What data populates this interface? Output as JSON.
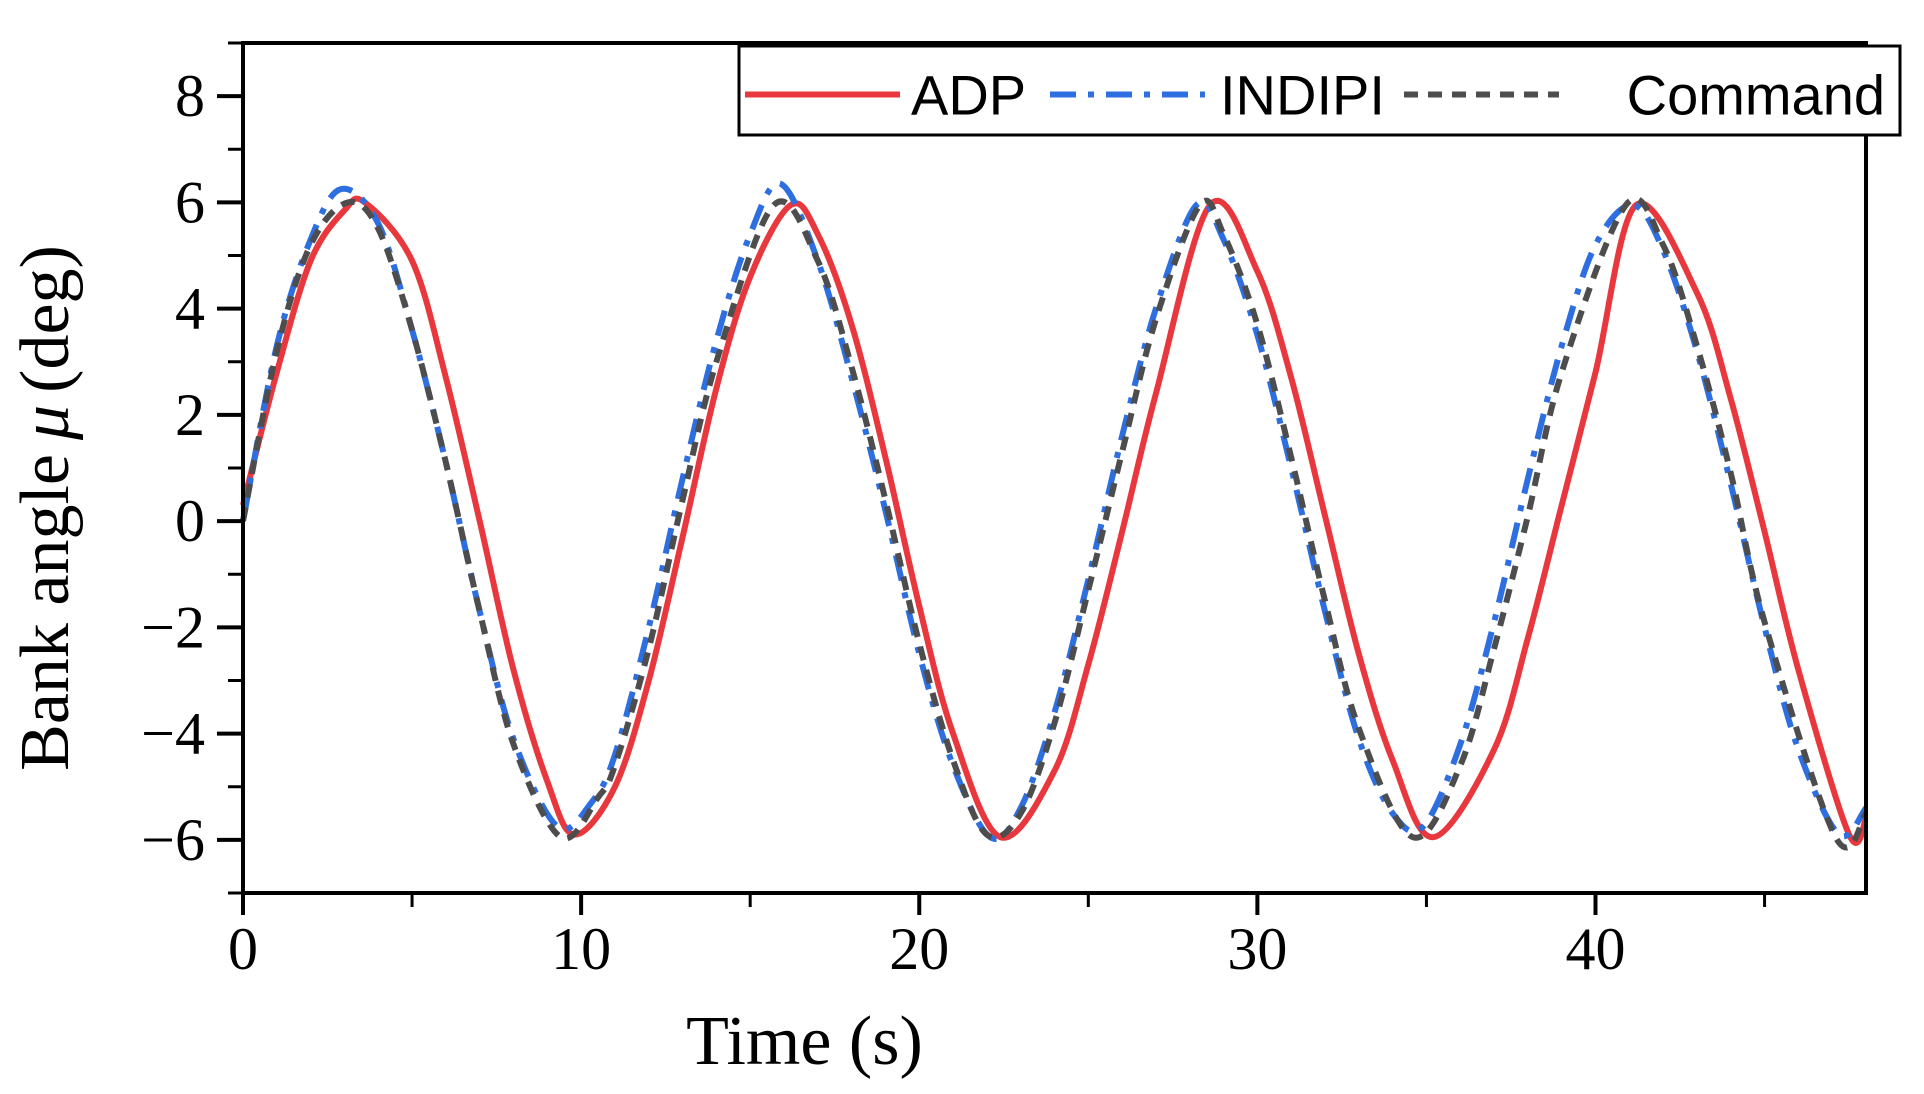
{
  "chart_data": {
    "type": "line",
    "title": "",
    "xlabel": "Time (s)",
    "ylabel": "Bank angle",
    "ylabel_symbol": "μ",
    "ylabel_unit": "(deg)",
    "xlim": [
      0,
      48
    ],
    "ylim": [
      -7,
      9
    ],
    "x_ticks": [
      0,
      10,
      20,
      30,
      40
    ],
    "x_tick_labels": [
      "0",
      "10",
      "20",
      "30",
      "40"
    ],
    "x_minor_ticks": [
      5,
      15,
      25,
      35,
      45
    ],
    "y_ticks": [
      -6,
      -4,
      -2,
      0,
      2,
      4,
      6,
      8
    ],
    "y_tick_labels": [
      "−6",
      "−4",
      "−2",
      "0",
      "2",
      "4",
      "6",
      "8"
    ],
    "y_minor_ticks": [
      -7,
      -5,
      -3,
      -1,
      1,
      3,
      5,
      7,
      9
    ],
    "grid": false,
    "legend": {
      "position": "top-right",
      "orientation": "horizontal"
    },
    "series": [
      {
        "name": "ADP",
        "color": "#e8373d",
        "style": "solid",
        "x": [
          0,
          1,
          2,
          3,
          3.6,
          5,
          6,
          7,
          8,
          9,
          9.8,
          11,
          12,
          13,
          14,
          15,
          16.2,
          17,
          18,
          19,
          20,
          21,
          22.4,
          24,
          25,
          26,
          27,
          28.6,
          30,
          31,
          32,
          33,
          34,
          35.2,
          37,
          38,
          39,
          40,
          41.2,
          43,
          44,
          45,
          46,
          47.5,
          48
        ],
        "values": [
          0.3,
          2.8,
          4.9,
          5.85,
          6.0,
          4.9,
          2.7,
          0.0,
          -2.8,
          -4.9,
          -5.9,
          -5.0,
          -3.0,
          -0.3,
          2.5,
          4.6,
          5.95,
          5.4,
          3.7,
          1.2,
          -1.6,
          -4.0,
          -5.95,
          -4.7,
          -2.7,
          -0.2,
          2.4,
          5.95,
          4.7,
          2.7,
          0.1,
          -2.5,
          -4.5,
          -5.95,
          -4.3,
          -2.2,
          0.3,
          2.8,
          5.95,
          4.3,
          2.3,
          -0.2,
          -2.8,
          -5.9,
          -5.6
        ]
      },
      {
        "name": "INDIPI",
        "color": "#2d6fe0",
        "style": "dashdot",
        "x": [
          0,
          1,
          2,
          2.9,
          4,
          5,
          6,
          7,
          8,
          9.3,
          10.3,
          11,
          12,
          13,
          14,
          15,
          15.9,
          17,
          18,
          19,
          20,
          21,
          22.1,
          23,
          24,
          25,
          26,
          27,
          28.2,
          29,
          30,
          31,
          32,
          33,
          34,
          34.9,
          36,
          37,
          38,
          39,
          40,
          41.1,
          42,
          43,
          44,
          45,
          46,
          47.2,
          48
        ],
        "values": [
          0.0,
          3.3,
          5.3,
          6.25,
          5.6,
          3.6,
          1.1,
          -1.7,
          -4.1,
          -5.75,
          -5.3,
          -4.4,
          -2.0,
          0.8,
          3.4,
          5.4,
          6.35,
          4.9,
          2.7,
          0.2,
          -2.5,
          -4.6,
          -5.95,
          -5.4,
          -3.6,
          -1.1,
          1.6,
          4.0,
          5.95,
          5.3,
          3.5,
          1.0,
          -1.7,
          -4.1,
          -5.5,
          -5.75,
          -4.2,
          -1.9,
          0.8,
          3.3,
          5.2,
          5.95,
          5.1,
          3.2,
          0.7,
          -2.0,
          -4.3,
          -5.9,
          -5.4
        ]
      },
      {
        "name": "Command",
        "color": "#4d4d4d",
        "style": "dashed",
        "x": [
          0,
          1,
          2,
          3.1,
          4,
          5,
          6,
          7,
          8,
          9.4,
          10.5,
          11,
          12,
          13,
          14,
          15.7,
          17,
          18,
          19,
          20,
          21,
          22,
          23,
          24,
          25,
          26,
          27,
          28.3,
          29,
          30,
          31,
          32,
          33,
          34.6,
          36,
          37,
          38,
          39,
          40.9,
          42,
          43,
          44,
          45,
          47.1,
          48
        ],
        "values": [
          0.0,
          3.2,
          5.2,
          6.0,
          5.5,
          3.6,
          1.1,
          -1.7,
          -4.2,
          -5.95,
          -5.2,
          -4.6,
          -2.4,
          0.4,
          3.0,
          5.95,
          4.9,
          2.9,
          0.4,
          -2.3,
          -4.5,
          -5.9,
          -5.5,
          -3.8,
          -1.3,
          1.3,
          3.8,
          5.95,
          5.4,
          3.7,
          1.2,
          -1.5,
          -3.9,
          -5.95,
          -4.6,
          -2.4,
          0.1,
          2.8,
          5.95,
          5.2,
          3.3,
          0.9,
          -1.9,
          -5.95,
          -5.5
        ]
      }
    ]
  }
}
